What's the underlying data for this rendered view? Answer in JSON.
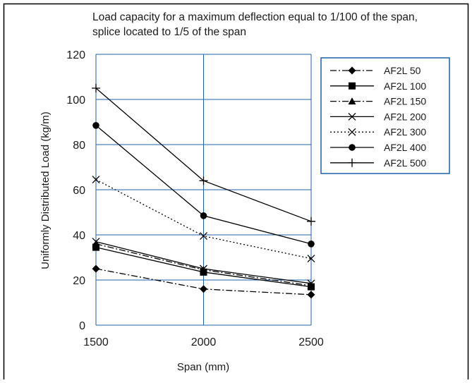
{
  "chart_data": {
    "type": "line",
    "title_lines": [
      "Load capacity for a maximum deflection equal to 1/100 of the span,",
      "splice located to 1/5 of the span"
    ],
    "xlabel": "Span (mm)",
    "ylabel": "Uniformly Distributed Load (kg/m)",
    "x": [
      1500,
      2000,
      2500
    ],
    "x_ticks": [
      "1500",
      "2000",
      "2500"
    ],
    "y_ticks": [
      "0",
      "20",
      "40",
      "60",
      "80",
      "100",
      "120"
    ],
    "xlim": [
      1500,
      2500
    ],
    "ylim": [
      0,
      120
    ],
    "grid": true,
    "legend_position": "top-right",
    "series": [
      {
        "name": "AF2L 50",
        "values": [
          25,
          16,
          13.5
        ],
        "marker": "diamond",
        "dash": "dashdot"
      },
      {
        "name": "AF2L 100",
        "values": [
          34.5,
          23.5,
          17
        ],
        "marker": "square",
        "dash": "solid"
      },
      {
        "name": "AF2L 150",
        "values": [
          36,
          24.5,
          17.5
        ],
        "marker": "triangle",
        "dash": "dashdot"
      },
      {
        "name": "AF2L 200",
        "values": [
          37,
          25,
          18.5
        ],
        "marker": "x",
        "dash": "solid"
      },
      {
        "name": "AF2L 300",
        "values": [
          64.5,
          39.5,
          29.5
        ],
        "marker": "x",
        "dash": "dotted"
      },
      {
        "name": "AF2L 400",
        "values": [
          88.5,
          48.5,
          36
        ],
        "marker": "circle",
        "dash": "solid"
      },
      {
        "name": "AF2L 500",
        "values": [
          105,
          64,
          46
        ],
        "marker": "plus",
        "dash": "solid"
      }
    ]
  }
}
